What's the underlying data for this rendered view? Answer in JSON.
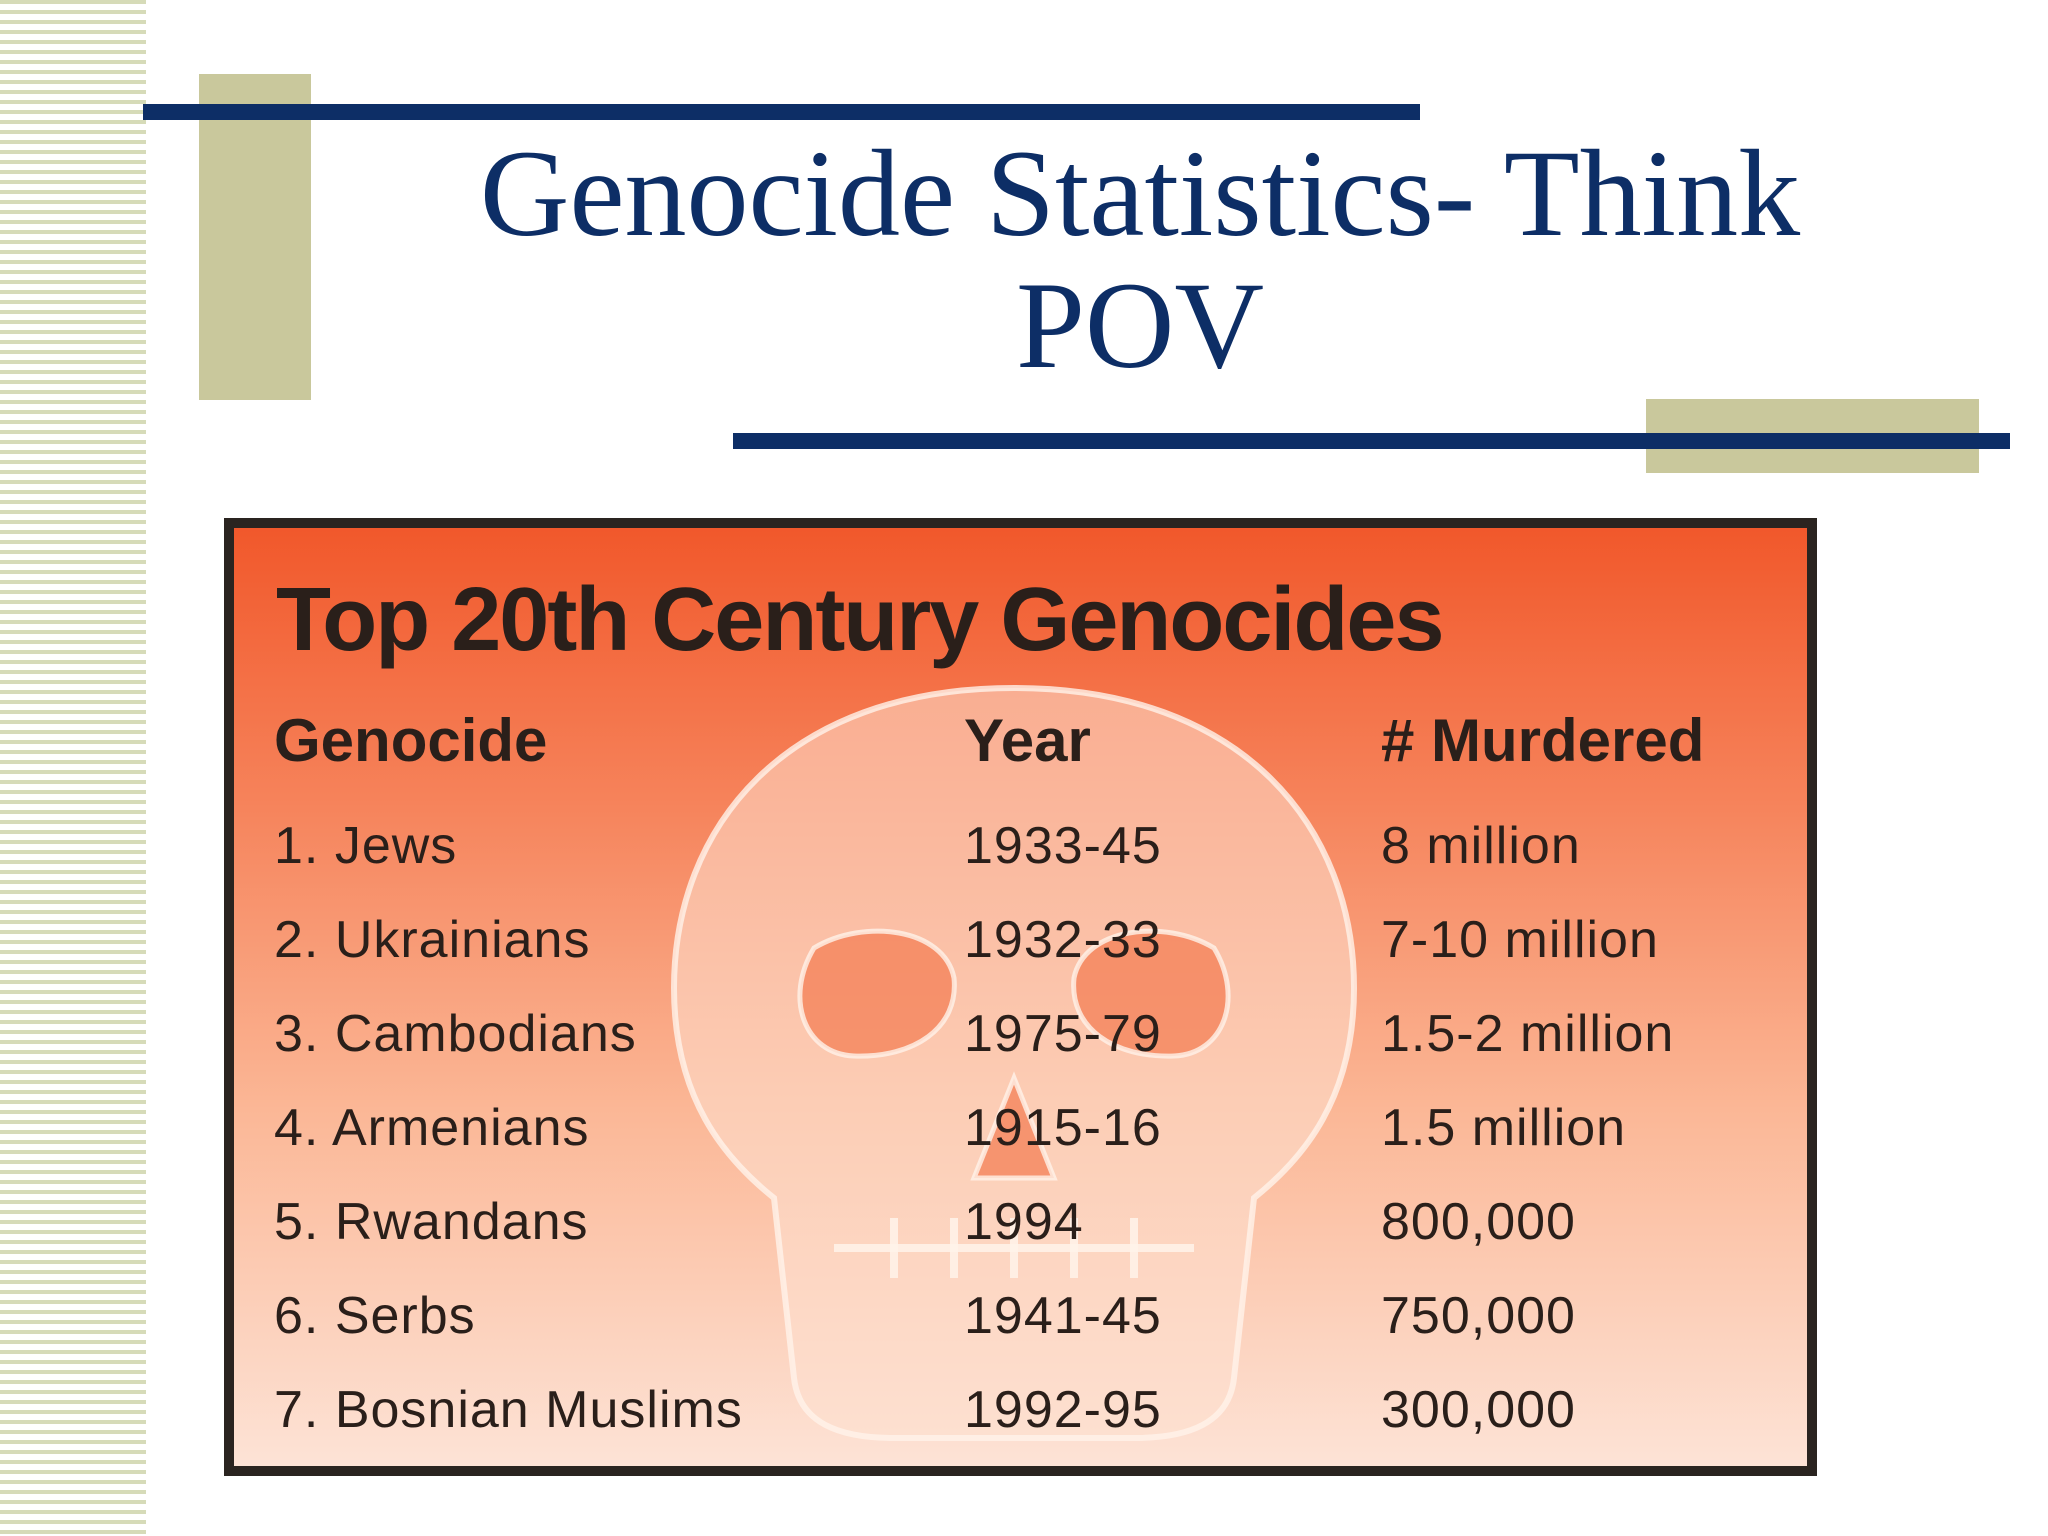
{
  "slide": {
    "title_line1": "Genocide Statistics- Think",
    "title_line2": "POV"
  },
  "table": {
    "title": "Top 20th Century Genocides",
    "headers": {
      "genocide": "Genocide",
      "year": "Year",
      "murdered": "# Murdered"
    },
    "rows": [
      {
        "genocide": "1. Jews",
        "year": "1933-45",
        "murdered": "8 million"
      },
      {
        "genocide": "2. Ukrainians",
        "year": "1932-33",
        "murdered": "7-10 million"
      },
      {
        "genocide": "3. Cambodians",
        "year": "1975-79",
        "murdered": "1.5-2 million"
      },
      {
        "genocide": "4. Armenians",
        "year": "1915-16",
        "murdered": "1.5  million"
      },
      {
        "genocide": "5. Rwandans",
        "year": "1994",
        "murdered": "800,000"
      },
      {
        "genocide": "6. Serbs",
        "year": "1941-45",
        "murdered": "750,000"
      },
      {
        "genocide": "7. Bosnian Muslims",
        "year": "1992-95",
        "murdered": "300,000"
      }
    ]
  },
  "colors": {
    "title_blue": "#0d2e66",
    "accent_khaki": "#c9c89c",
    "table_top": "#f1582b",
    "table_bottom": "#fde3d6"
  },
  "icons": {
    "background_illustration": "skull-icon"
  }
}
